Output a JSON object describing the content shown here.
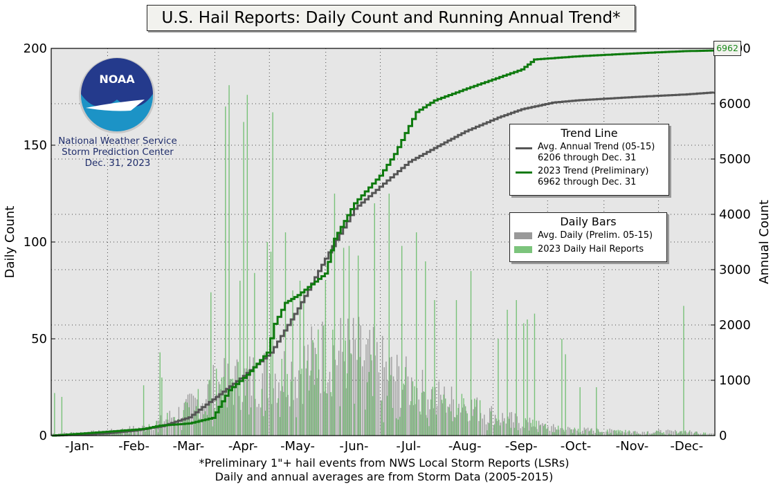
{
  "title": "U.S. Hail Reports: Daily Count and Running Annual Trend*",
  "noaa": {
    "logo_text": "NOAA",
    "caption_lines": [
      "National Weather Service",
      "Storm Prediction Center",
      "Dec. 31, 2023"
    ]
  },
  "legend_trend": {
    "title": "Trend Line",
    "items": [
      {
        "line1": "Avg. Annual Trend (05-15)",
        "line2": "6206 through Dec. 31",
        "color": "#555555"
      },
      {
        "line1": "2023 Trend (Preliminary)",
        "line2": "6962 through Dec. 31",
        "color": "#0e7a0e"
      }
    ]
  },
  "legend_bars": {
    "title": "Daily Bars",
    "items": [
      {
        "label": "Avg. Daily (Prelim. 05-15)",
        "color": "#999999"
      },
      {
        "label": "2023 Daily Hail Reports",
        "color": "#7cc47c"
      }
    ]
  },
  "footer": {
    "line1": "*Preliminary 1\"+ hail events from NWS Local Storm Reports (LSRs)",
    "line2": "Daily and annual averages are from Storm Data (2005-2015)"
  },
  "badge_value": "6962",
  "chart_data": {
    "type": "bar",
    "xlabel": "",
    "ylabel": "Daily Count",
    "y2label": "Annual Count",
    "ylim": [
      0,
      200
    ],
    "y2lim": [
      0,
      7000
    ],
    "yticks": [
      0,
      50,
      100,
      150,
      200
    ],
    "y2ticks": [
      0,
      1000,
      2000,
      3000,
      4000,
      5000,
      6000,
      7000
    ],
    "y2ticklabels": [
      "0",
      "1000",
      "2000",
      "3000",
      "4000",
      "5000",
      "6000",
      "7000"
    ],
    "months": [
      "-Jan-",
      "-Feb-",
      "-Mar-",
      "-Apr-",
      "-May-",
      "-Jun-",
      "-Jul-",
      "-Aug-",
      "-Sep-",
      "-Oct-",
      "-Nov-",
      "-Dec-"
    ],
    "month_day_index": [
      15,
      45,
      75,
      105,
      135,
      166,
      196,
      227,
      258,
      288,
      319,
      349
    ],
    "grid": true,
    "series": [
      {
        "name": "Avg. Daily (Prelim. 05-15)",
        "kind": "bar",
        "color": "#999999",
        "profile": [
          [
            0,
            1
          ],
          [
            30,
            2
          ],
          [
            50,
            4
          ],
          [
            60,
            7
          ],
          [
            75,
            14
          ],
          [
            90,
            25
          ],
          [
            105,
            28
          ],
          [
            120,
            32
          ],
          [
            135,
            34
          ],
          [
            150,
            42
          ],
          [
            166,
            42
          ],
          [
            180,
            35
          ],
          [
            196,
            26
          ],
          [
            210,
            20
          ],
          [
            227,
            16
          ],
          [
            245,
            10
          ],
          [
            258,
            7
          ],
          [
            275,
            4
          ],
          [
            288,
            3
          ],
          [
            319,
            2
          ],
          [
            349,
            2
          ],
          [
            364,
            1
          ]
        ]
      },
      {
        "name": "2023 Daily Hail Reports",
        "kind": "bar",
        "color": "#6cbd6c",
        "peaks": [
          [
            1,
            22
          ],
          [
            5,
            20
          ],
          [
            50,
            26
          ],
          [
            59,
            43
          ],
          [
            60,
            30
          ],
          [
            87,
            74
          ],
          [
            93,
            30
          ],
          [
            95,
            170
          ],
          [
            97,
            181
          ],
          [
            103,
            80
          ],
          [
            105,
            162
          ],
          [
            107,
            176
          ],
          [
            111,
            84
          ],
          [
            118,
            100
          ],
          [
            120,
            95
          ],
          [
            121,
            167
          ],
          [
            128,
            105
          ],
          [
            132,
            75
          ],
          [
            136,
            80
          ],
          [
            138,
            75
          ],
          [
            150,
            80
          ],
          [
            155,
            125
          ],
          [
            160,
            97
          ],
          [
            163,
            98
          ],
          [
            168,
            93
          ],
          [
            177,
            120
          ],
          [
            185,
            125
          ],
          [
            192,
            98
          ],
          [
            200,
            105
          ],
          [
            205,
            90
          ],
          [
            210,
            70
          ],
          [
            222,
            70
          ],
          [
            230,
            85
          ],
          [
            245,
            50
          ],
          [
            250,
            65
          ],
          [
            255,
            70
          ],
          [
            259,
            58
          ],
          [
            261,
            60
          ],
          [
            265,
            63
          ],
          [
            280,
            50
          ],
          [
            282,
            42
          ],
          [
            290,
            25
          ],
          [
            299,
            25
          ],
          [
            347,
            67
          ]
        ]
      },
      {
        "name": "Avg. Annual Trend (05-15)",
        "kind": "line",
        "axis": "y2",
        "color": "#555555",
        "points": [
          [
            0,
            0
          ],
          [
            30,
            40
          ],
          [
            45,
            90
          ],
          [
            60,
            170
          ],
          [
            75,
            330
          ],
          [
            90,
            700
          ],
          [
            105,
            1080
          ],
          [
            120,
            1500
          ],
          [
            135,
            2300
          ],
          [
            150,
            3200
          ],
          [
            166,
            4100
          ],
          [
            180,
            4500
          ],
          [
            196,
            4950
          ],
          [
            210,
            5200
          ],
          [
            227,
            5500
          ],
          [
            245,
            5750
          ],
          [
            258,
            5900
          ],
          [
            275,
            6020
          ],
          [
            288,
            6060
          ],
          [
            319,
            6120
          ],
          [
            349,
            6170
          ],
          [
            364,
            6206
          ]
        ]
      },
      {
        "name": "2023 Trend (Preliminary)",
        "kind": "line",
        "axis": "y2",
        "color": "#0e7a0e",
        "points": [
          [
            0,
            0
          ],
          [
            30,
            70
          ],
          [
            50,
            120
          ],
          [
            59,
            180
          ],
          [
            75,
            220
          ],
          [
            88,
            320
          ],
          [
            97,
            820
          ],
          [
            107,
            1100
          ],
          [
            118,
            1500
          ],
          [
            122,
            2020
          ],
          [
            128,
            2400
          ],
          [
            135,
            2540
          ],
          [
            150,
            2930
          ],
          [
            155,
            3560
          ],
          [
            166,
            4200
          ],
          [
            180,
            4700
          ],
          [
            188,
            5090
          ],
          [
            200,
            5850
          ],
          [
            210,
            6060
          ],
          [
            230,
            6300
          ],
          [
            258,
            6620
          ],
          [
            265,
            6800
          ],
          [
            290,
            6860
          ],
          [
            320,
            6910
          ],
          [
            347,
            6950
          ],
          [
            364,
            6962
          ]
        ]
      }
    ]
  }
}
